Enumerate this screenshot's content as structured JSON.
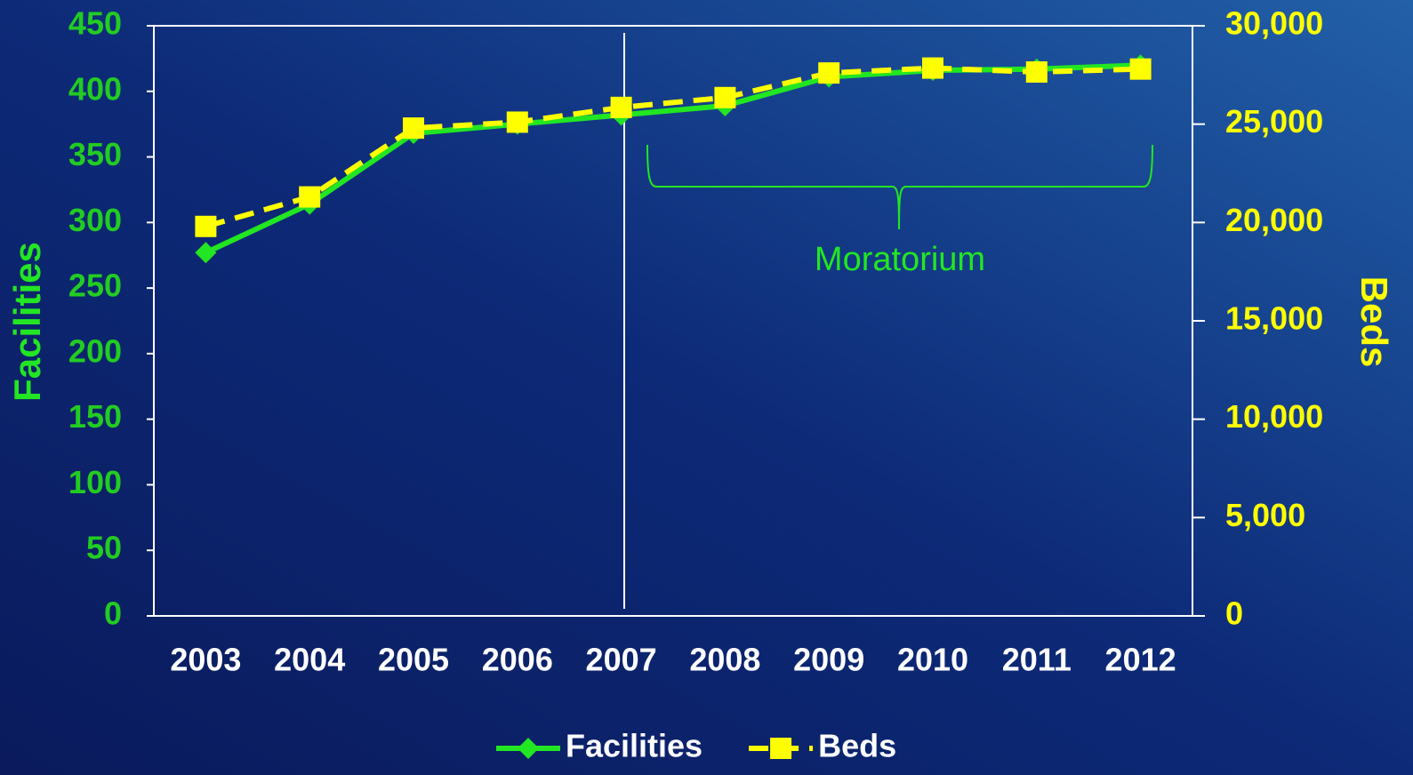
{
  "chart_data": {
    "type": "line",
    "categories": [
      "2003",
      "2004",
      "2005",
      "2006",
      "2007",
      "2008",
      "2009",
      "2010",
      "2011",
      "2012"
    ],
    "series": [
      {
        "name": "Facilities",
        "color": "#22e622",
        "marker": "diamond",
        "dash": false,
        "values": [
          277,
          314,
          368,
          375,
          382,
          389,
          411,
          416,
          417,
          420
        ]
      },
      {
        "name": "Beds",
        "color": "#ffff00",
        "marker": "square",
        "dash": true,
        "axis": "y2",
        "values": [
          19800,
          21300,
          24800,
          25100,
          25850,
          26350,
          27600,
          27850,
          27650,
          27800
        ]
      }
    ],
    "ylabel": "Facilities",
    "y2label": "Beds",
    "ylim": [
      0,
      450
    ],
    "yticks": [
      0,
      50,
      100,
      150,
      200,
      250,
      300,
      350,
      400,
      450
    ],
    "y2lim": [
      0,
      30000
    ],
    "y2ticks": [
      0,
      {
        "value": 5000,
        "label": "5,000"
      },
      {
        "value": 10000,
        "label": "10,000"
      },
      {
        "value": 15000,
        "label": "15,000"
      },
      {
        "value": 20000,
        "label": "20,000"
      },
      {
        "value": 25000,
        "label": "25,000"
      },
      {
        "value": 30000,
        "label": "30,000"
      }
    ],
    "annotation": "Moratorium"
  }
}
